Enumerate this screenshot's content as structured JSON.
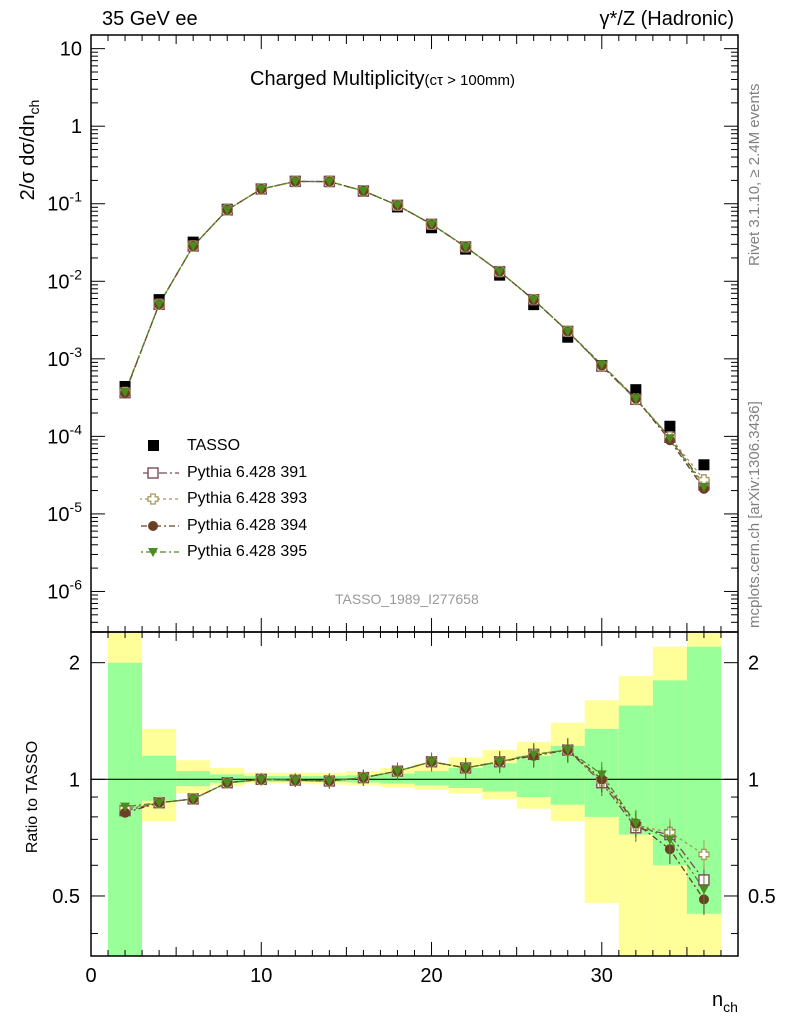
{
  "header": {
    "left": "35 GeV ee",
    "right": "γ*/Z (Hadronic)",
    "title": "Charged Multiplicity",
    "title_sub": "(cτ > 100mm)",
    "watermark": "TASSO_1989_I277658",
    "side_top": "Rivet 3.1.10, ≥ 2.4M events",
    "side_bottom": "mcplots.cern.ch [arXiv:1306.3436]"
  },
  "axes": {
    "top_ylabel": "2/σ dσ/dn_ch",
    "top_yticks": [
      "10^-6",
      "10^-5",
      "10^-4",
      "10^-3",
      "10^-2",
      "10^-1",
      "1",
      "10"
    ],
    "bottom_ylabel": "Ratio to TASSO",
    "bottom_yticks": [
      "0.5",
      "1",
      "2"
    ],
    "xlabel": "n_ch",
    "xticks": [
      "0",
      "10",
      "20",
      "30"
    ]
  },
  "chart_data": {
    "type": "scatter",
    "x_range": [
      0,
      38
    ],
    "top_ylim": [
      3e-07,
      15
    ],
    "top_yscale": "log",
    "ratio_ylim": [
      0.35,
      2.4
    ],
    "ratio_yscale": "log",
    "legend_position": "bottom-left",
    "x": [
      2,
      4,
      6,
      8,
      10,
      12,
      14,
      16,
      18,
      20,
      22,
      24,
      26,
      28,
      30,
      32,
      34,
      36
    ],
    "data": {
      "name": "TASSO",
      "values": [
        0.00044,
        0.0058,
        0.032,
        0.085,
        0.155,
        0.195,
        0.195,
        0.145,
        0.091,
        0.049,
        0.026,
        0.012,
        0.005,
        0.0019,
        0.00082,
        0.0004,
        0.000135,
        4.3e-05
      ]
    },
    "uncertainty_bands": {
      "edges": [
        1,
        3,
        5,
        7,
        9,
        11,
        13,
        15,
        17,
        19,
        21,
        23,
        25,
        27,
        29,
        31,
        33,
        35,
        37
      ],
      "stat_lo": [
        0.35,
        0.88,
        0.96,
        0.98,
        0.985,
        0.985,
        0.985,
        0.982,
        0.975,
        0.965,
        0.95,
        0.93,
        0.9,
        0.86,
        0.8,
        0.72,
        0.6,
        0.45
      ],
      "stat_hi": [
        2.0,
        1.15,
        1.05,
        1.03,
        1.02,
        1.02,
        1.02,
        1.025,
        1.035,
        1.05,
        1.07,
        1.1,
        1.15,
        1.22,
        1.35,
        1.55,
        1.8,
        2.2
      ],
      "total_lo": [
        0.35,
        0.78,
        0.92,
        0.96,
        0.975,
        0.975,
        0.97,
        0.965,
        0.955,
        0.94,
        0.92,
        0.89,
        0.84,
        0.78,
        0.48,
        0.35,
        0.35,
        0.35
      ],
      "total_hi": [
        2.4,
        1.35,
        1.12,
        1.07,
        1.04,
        1.04,
        1.04,
        1.05,
        1.07,
        1.1,
        1.14,
        1.19,
        1.25,
        1.4,
        1.6,
        1.85,
        2.2,
        2.4
      ]
    },
    "series": [
      {
        "name": "Pythia 6.428 391",
        "marker": "open-square",
        "color": "#7a4a5a",
        "dash": "8,3,2,3",
        "ratio": [
          0.83,
          0.87,
          0.89,
          0.98,
          1.0,
          0.995,
          0.99,
          1.01,
          1.05,
          1.11,
          1.07,
          1.11,
          1.16,
          1.19,
          0.98,
          0.75,
          0.72,
          0.55
        ]
      },
      {
        "name": "Pythia 6.428 393",
        "marker": "open-cross",
        "color": "#a89a55",
        "dash": "3,3",
        "ratio": [
          0.84,
          0.87,
          0.89,
          0.98,
          1.0,
          0.995,
          0.99,
          1.01,
          1.05,
          1.11,
          1.07,
          1.11,
          1.16,
          1.19,
          0.99,
          0.76,
          0.73,
          0.64
        ]
      },
      {
        "name": "Pythia 6.428 394",
        "marker": "filled-circle",
        "color": "#6b3f24",
        "dash": "6,3,2,3",
        "ratio": [
          0.82,
          0.87,
          0.89,
          0.98,
          1.0,
          0.995,
          0.99,
          1.01,
          1.05,
          1.11,
          1.07,
          1.11,
          1.15,
          1.19,
          1.0,
          0.77,
          0.66,
          0.49
        ]
      },
      {
        "name": "Pythia 6.428 395",
        "marker": "filled-triangle-down",
        "color": "#4d8a1f",
        "dash": "2,3,6,3",
        "ratio": [
          0.85,
          0.87,
          0.89,
          0.98,
          1.0,
          0.995,
          0.99,
          1.01,
          1.05,
          1.11,
          1.07,
          1.11,
          1.16,
          1.19,
          1.03,
          0.77,
          0.7,
          0.52
        ]
      }
    ]
  },
  "colors": {
    "band_stat": "#99ff99",
    "band_total": "#ffff99",
    "watermark": "#999999"
  }
}
